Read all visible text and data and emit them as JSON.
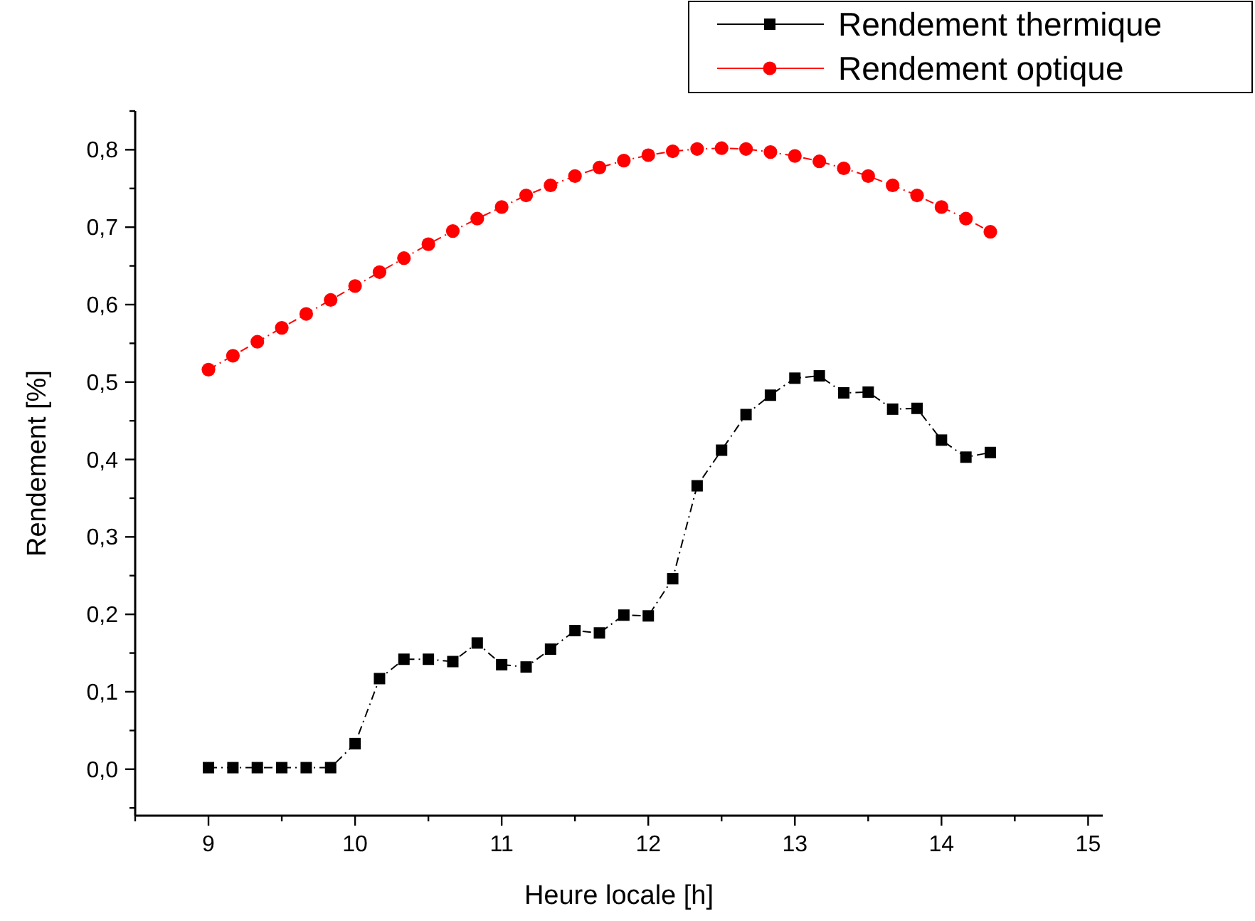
{
  "chart_data": {
    "type": "line",
    "xlabel": "Heure locale [h]",
    "ylabel": "Rendement [%]",
    "x": [
      9,
      9.1667,
      9.3333,
      9.5,
      9.6667,
      9.8333,
      10,
      10.1667,
      10.3333,
      10.5,
      10.6667,
      10.8333,
      11,
      11.1667,
      11.3333,
      11.5,
      11.6667,
      11.8333,
      12,
      12.1667,
      12.3333,
      12.5,
      12.6667,
      12.8333,
      13,
      13.1667,
      13.3333,
      13.5,
      13.6667,
      13.8333,
      14,
      14.1667,
      14.3333
    ],
    "series": [
      {
        "name": "Rendement thermique",
        "color": "#000000",
        "marker": "square",
        "line_style": "dashed",
        "values": [
          0.002,
          0.002,
          0.002,
          0.002,
          0.002,
          0.002,
          0.033,
          0.117,
          0.142,
          0.142,
          0.139,
          0.163,
          0.135,
          0.132,
          0.155,
          0.179,
          0.176,
          0.199,
          0.198,
          0.246,
          0.366,
          0.412,
          0.458,
          0.483,
          0.505,
          0.508,
          0.486,
          0.487,
          0.465,
          0.466,
          0.425,
          0.403,
          0.409
        ]
      },
      {
        "name": "Rendement optique",
        "color": "#ff0000",
        "marker": "circle",
        "line_style": "dashed",
        "values": [
          0.516,
          0.534,
          0.552,
          0.57,
          0.588,
          0.606,
          0.624,
          0.642,
          0.66,
          0.678,
          0.695,
          0.711,
          0.726,
          0.741,
          0.754,
          0.766,
          0.777,
          0.786,
          0.793,
          0.798,
          0.801,
          0.802,
          0.801,
          0.797,
          0.792,
          0.785,
          0.776,
          0.766,
          0.754,
          0.741,
          0.726,
          0.711,
          0.694
        ]
      }
    ],
    "xlim": [
      8.5,
      15.1
    ],
    "xticks": [
      {
        "value": 8.5,
        "label": null
      },
      9,
      {
        "value": 9.5,
        "label": null
      },
      10,
      {
        "value": 10.5,
        "label": null
      },
      11,
      {
        "value": 11.5,
        "label": null
      },
      12,
      {
        "value": 12.5,
        "label": null
      },
      13,
      {
        "value": 13.5,
        "label": null
      },
      14,
      {
        "value": 14.5,
        "label": null
      },
      15
    ],
    "ylim": [
      -0.06,
      0.85
    ],
    "yticks": [
      {
        "value": -0.05,
        "label": null
      },
      {
        "value": 0,
        "label": "0,0"
      },
      {
        "value": 0.05,
        "label": null
      },
      {
        "value": 0.1,
        "label": "0,1"
      },
      {
        "value": 0.15,
        "label": null
      },
      {
        "value": 0.2,
        "label": "0,2"
      },
      {
        "value": 0.25,
        "label": null
      },
      {
        "value": 0.3,
        "label": "0,3"
      },
      {
        "value": 0.35,
        "label": null
      },
      {
        "value": 0.4,
        "label": "0,4"
      },
      {
        "value": 0.45,
        "label": null
      },
      {
        "value": 0.5,
        "label": "0,5"
      },
      {
        "value": 0.55,
        "label": null
      },
      {
        "value": 0.6,
        "label": "0,6"
      },
      {
        "value": 0.65,
        "label": null
      },
      {
        "value": 0.7,
        "label": "0,7"
      },
      {
        "value": 0.75,
        "label": null
      },
      {
        "value": 0.8,
        "label": "0,8"
      },
      {
        "value": 0.85,
        "label": null
      }
    ],
    "grid": false,
    "legend": "top right"
  }
}
